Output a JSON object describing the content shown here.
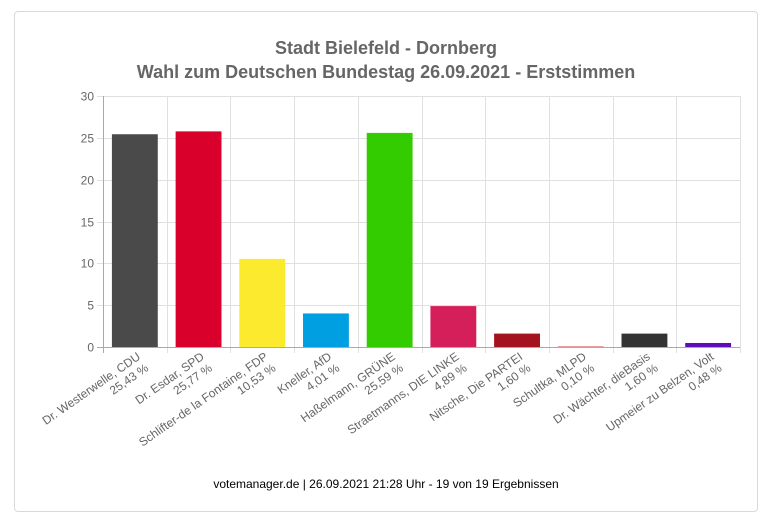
{
  "chart_data": {
    "type": "bar",
    "title": "Stadt Bielefeld - Dornberg",
    "subtitle": "Wahl zum Deutschen Bundestag 26.09.2021  - Erststimmen",
    "xlabel": "",
    "ylabel": "",
    "ylim": [
      0,
      30
    ],
    "yticks": [
      0,
      5,
      10,
      15,
      20,
      25,
      30
    ],
    "grid": true,
    "legend": "none",
    "categories": [
      {
        "name": "Dr. Westerwelle, CDU",
        "pct_label": "25,43 %",
        "value": 25.43,
        "color": "#4a4a4a"
      },
      {
        "name": "Dr. Esdar, SPD",
        "pct_label": "25,77 %",
        "value": 25.77,
        "color": "#d9002b"
      },
      {
        "name": "Schlifter-de la Fontaine, FDP",
        "pct_label": "10,53 %",
        "value": 10.53,
        "color": "#fcea2f"
      },
      {
        "name": "Kneller, AfD",
        "pct_label": "4,01 %",
        "value": 4.01,
        "color": "#009fe1"
      },
      {
        "name": "Haßelmann, GRÜNE",
        "pct_label": "25,59 %",
        "value": 25.59,
        "color": "#33cc00"
      },
      {
        "name": "Straetmanns, DIE LINKE",
        "pct_label": "4,89 %",
        "value": 4.89,
        "color": "#d41f5b"
      },
      {
        "name": "Nitsche, Die PARTEI",
        "pct_label": "1,60 %",
        "value": 1.6,
        "color": "#a4111f"
      },
      {
        "name": "Schultka, MLPD",
        "pct_label": "0,10 %",
        "value": 0.1,
        "color": "#e88a8a"
      },
      {
        "name": "Dr. Wächter, dieBasis",
        "pct_label": "1,60 %",
        "value": 1.6,
        "color": "#333333"
      },
      {
        "name": "Upmeier zu Belzen, Volt",
        "pct_label": "0,48 %",
        "value": 0.48,
        "color": "#5e0eb8"
      }
    ]
  },
  "footer": "votemanager.de | 26.09.2021 21:28 Uhr - 19 von 19 Ergebnissen"
}
